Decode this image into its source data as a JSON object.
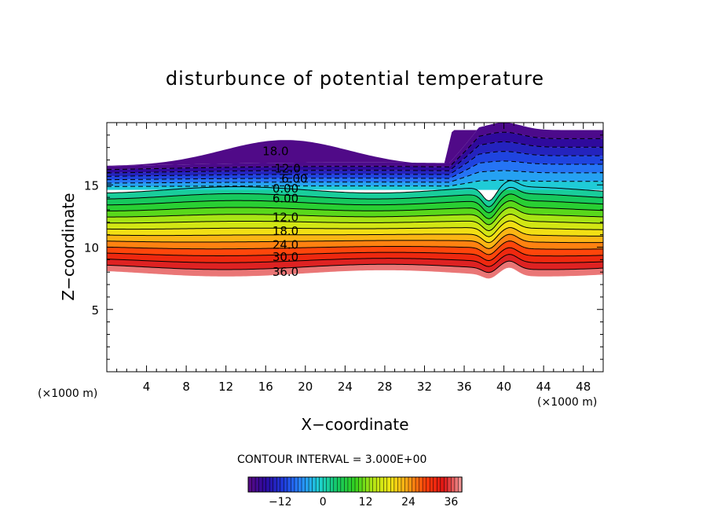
{
  "chart_data": {
    "type": "heatmap",
    "title": "disturbunce of potential temperature",
    "xlabel": "X−coordinate",
    "ylabel": "Z−coordinate",
    "x_unit_left": "(×1000 m)",
    "x_unit_right": "(×1000 m)",
    "xlim": [
      0,
      50
    ],
    "ylim": [
      0,
      20
    ],
    "x_ticks": [
      4,
      8,
      12,
      16,
      20,
      24,
      28,
      32,
      36,
      40,
      44,
      48
    ],
    "x_tick_labels": [
      "4",
      "8",
      "12",
      "16",
      "20",
      "24",
      "28",
      "32",
      "36",
      "40",
      "44",
      "48"
    ],
    "y_ticks": [
      5,
      10,
      15
    ],
    "y_tick_labels": [
      "5",
      "10",
      "15"
    ],
    "contour_interval": "CONTOUR INTERVAL = 3.000E+00",
    "contour_labels": [
      {
        "text": "18.0",
        "value": -18,
        "x": 17,
        "z": 17.7,
        "dashed": true
      },
      {
        "text": "12.0",
        "value": -12,
        "x": 18.2,
        "z": 16.3,
        "dashed": true
      },
      {
        "text": "6.00",
        "value": -6,
        "x": 18.9,
        "z": 15.5,
        "dashed": true
      },
      {
        "text": "0.00",
        "value": 0,
        "x": 18,
        "z": 14.7,
        "dashed": false
      },
      {
        "text": "6.00",
        "value": 6,
        "x": 18,
        "z": 13.9,
        "dashed": false
      },
      {
        "text": "12.0",
        "value": 12,
        "x": 18,
        "z": 12.4,
        "dashed": false
      },
      {
        "text": "18.0",
        "value": 18,
        "x": 18,
        "z": 11.3,
        "dashed": false
      },
      {
        "text": "24.0",
        "value": 24,
        "x": 18,
        "z": 10.2,
        "dashed": false
      },
      {
        "text": "30.0",
        "value": 30,
        "x": 18,
        "z": 9.2,
        "dashed": false
      },
      {
        "text": "36.0",
        "value": 36,
        "x": 18,
        "z": 8.0,
        "dashed": false
      }
    ],
    "field": {
      "bottom_boundary_z": 7.9,
      "zero_line_z": 14.6,
      "top_boundary_z": 16.5,
      "upper_bulge_peak": {
        "x": 18,
        "z": 18.6
      },
      "upper_patch_right": {
        "x_from": 34.5,
        "x_to": 50,
        "z_top": 19.4
      },
      "disturbance_center": {
        "x": 38.5,
        "z": 12.8
      }
    },
    "colorbar": {
      "min": -21,
      "max": 39,
      "ticks": [
        -12,
        0,
        12,
        24,
        36
      ],
      "tick_labels": [
        "−12",
        "0",
        "12",
        "24",
        "36"
      ]
    },
    "grid": false,
    "colormap": [
      "#5a0a82",
      "#2a0aa0",
      "#1e3cdc",
      "#288cff",
      "#1ed2d2",
      "#14c864",
      "#32d21e",
      "#b4e614",
      "#f0e614",
      "#ffa014",
      "#ff3c0a",
      "#dc1414",
      "#f0a0a0"
    ]
  }
}
